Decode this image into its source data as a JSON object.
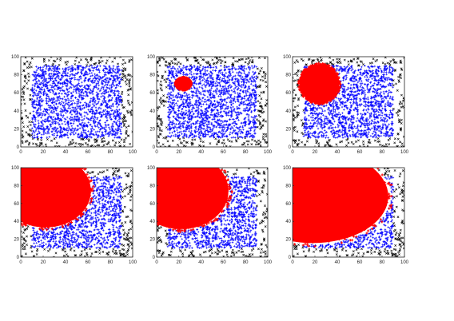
{
  "chart_data": [
    {
      "type": "scatter",
      "xlim": [
        0,
        100
      ],
      "ylim": [
        0,
        100
      ],
      "x_ticks": [
        "0",
        "20",
        "40",
        "60",
        "80",
        "100"
      ],
      "y_ticks": [
        "0",
        "20",
        "40",
        "60",
        "80",
        "100"
      ],
      "grid": false,
      "series": [
        {
          "kind": "boundary",
          "color": "#000000",
          "marker": "x",
          "x_range": [
            0,
            100
          ],
          "y_range": [
            0,
            100
          ]
        },
        {
          "kind": "interior",
          "color": "#0000ff",
          "marker": "+",
          "x_range": [
            10,
            90
          ],
          "y_range": [
            10,
            90
          ]
        }
      ],
      "red_region": null
    },
    {
      "type": "scatter",
      "xlim": [
        0,
        100
      ],
      "ylim": [
        0,
        100
      ],
      "x_ticks": [
        "0",
        "20",
        "40",
        "60",
        "80",
        "100"
      ],
      "y_ticks": [
        "0",
        "20",
        "40",
        "60",
        "80",
        "100"
      ],
      "grid": false,
      "series": [
        {
          "kind": "boundary",
          "color": "#000000",
          "marker": "x",
          "x_range": [
            0,
            100
          ],
          "y_range": [
            0,
            100
          ]
        },
        {
          "kind": "interior",
          "color": "#0000ff",
          "marker": "+",
          "x_range": [
            10,
            90
          ],
          "y_range": [
            10,
            90
          ]
        }
      ],
      "red_region": {
        "color": "#ff0000",
        "center": [
          24,
          70
        ],
        "radius_x": 7,
        "radius_y": 7
      }
    },
    {
      "type": "scatter",
      "xlim": [
        0,
        100
      ],
      "ylim": [
        0,
        100
      ],
      "x_ticks": [
        "0",
        "20",
        "40",
        "60",
        "80",
        "100"
      ],
      "y_ticks": [
        "0",
        "20",
        "40",
        "60",
        "80",
        "100"
      ],
      "grid": false,
      "series": [
        {
          "kind": "boundary",
          "color": "#000000",
          "marker": "x",
          "x_range": [
            0,
            100
          ],
          "y_range": [
            0,
            100
          ]
        },
        {
          "kind": "interior",
          "color": "#0000ff",
          "marker": "+",
          "x_range": [
            10,
            90
          ],
          "y_range": [
            10,
            90
          ]
        }
      ],
      "red_region": {
        "color": "#ff0000",
        "center": [
          24,
          70
        ],
        "radius_x": 18,
        "radius_y": 22
      }
    },
    {
      "type": "scatter",
      "xlim": [
        0,
        100
      ],
      "ylim": [
        0,
        100
      ],
      "x_ticks": [
        "0",
        "20",
        "40",
        "60",
        "80",
        "100"
      ],
      "y_ticks": [
        "0",
        "20",
        "40",
        "60",
        "80",
        "100"
      ],
      "grid": false,
      "series": [
        {
          "kind": "boundary",
          "color": "#000000",
          "marker": "x",
          "x_range": [
            0,
            100
          ],
          "y_range": [
            0,
            100
          ]
        },
        {
          "kind": "interior",
          "color": "#0000ff",
          "marker": "+",
          "x_range": [
            10,
            90
          ],
          "y_range": [
            10,
            90
          ]
        }
      ],
      "red_region": {
        "color": "#ff0000",
        "center": [
          22,
          74
        ],
        "radius_x": 42,
        "radius_y": 42
      }
    },
    {
      "type": "scatter",
      "xlim": [
        0,
        100
      ],
      "ylim": [
        0,
        100
      ],
      "x_ticks": [
        "0",
        "20",
        "40",
        "60",
        "80",
        "100"
      ],
      "y_ticks": [
        "0",
        "20",
        "40",
        "60",
        "80",
        "100"
      ],
      "grid": false,
      "series": [
        {
          "kind": "boundary",
          "color": "#000000",
          "marker": "x",
          "x_range": [
            0,
            100
          ],
          "y_range": [
            0,
            100
          ]
        },
        {
          "kind": "interior",
          "color": "#0000ff",
          "marker": "+",
          "x_range": [
            10,
            90
          ],
          "y_range": [
            10,
            90
          ]
        }
      ],
      "red_region": {
        "color": "#ff0000",
        "center": [
          22,
          74
        ],
        "radius_x": 44,
        "radius_y": 44
      }
    },
    {
      "type": "scatter",
      "xlim": [
        0,
        100
      ],
      "ylim": [
        0,
        100
      ],
      "x_ticks": [
        "0",
        "20",
        "40",
        "60",
        "80",
        "100"
      ],
      "y_ticks": [
        "0",
        "20",
        "40",
        "60",
        "80",
        "100"
      ],
      "grid": false,
      "series": [
        {
          "kind": "boundary",
          "color": "#000000",
          "marker": "x",
          "x_range": [
            0,
            100
          ],
          "y_range": [
            0,
            100
          ]
        },
        {
          "kind": "interior",
          "color": "#0000ff",
          "marker": "+",
          "x_range": [
            10,
            90
          ],
          "y_range": [
            10,
            90
          ]
        }
      ],
      "red_region": {
        "color": "#ff0000",
        "center": [
          18,
          68
        ],
        "radius_x": 70,
        "radius_y": 54
      }
    }
  ]
}
